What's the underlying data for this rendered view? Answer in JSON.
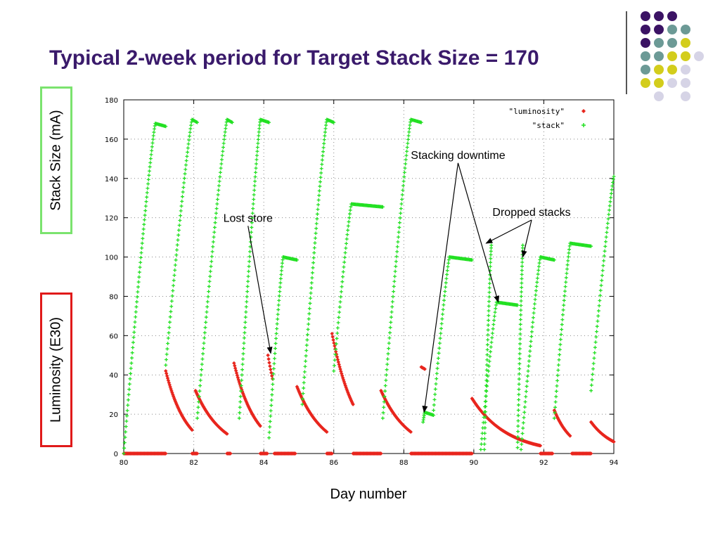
{
  "slide": {
    "title": "Typical 2-week period for Target Stack Size = 170",
    "ylabel_top": "Stack Size (mA)",
    "ylabel_bottom": "Luminosity (E30)",
    "xlabel": "Day number"
  },
  "decoration": {
    "dot_colors": [
      "#3b1364",
      "#6c9a96",
      "#d3cd1c",
      "#d6d4e6"
    ]
  },
  "chart_data": {
    "type": "scatter",
    "xlim": [
      80,
      94
    ],
    "ylim": [
      0,
      180
    ],
    "x_ticks": [
      80,
      82,
      84,
      86,
      88,
      90,
      92,
      94
    ],
    "y_ticks": [
      0,
      20,
      40,
      60,
      80,
      100,
      120,
      140,
      160,
      180
    ],
    "grid": true,
    "legend_position": "top-right",
    "legend": [
      "\"luminosity\"",
      "\"stack\""
    ],
    "colors": {
      "luminosity": "#e8261e",
      "stack": "#22e022"
    },
    "stack_segments": [
      {
        "x0": 80.0,
        "y0": 0,
        "x1": 80.9,
        "y1": 168,
        "plateau_end": 81.2
      },
      {
        "x0": 81.2,
        "y0": 45,
        "x1": 81.95,
        "y1": 170,
        "plateau_end": 82.1
      },
      {
        "x0": 82.1,
        "y0": 18,
        "x1": 82.95,
        "y1": 170,
        "plateau_end": 83.1
      },
      {
        "x0": 83.3,
        "y0": 18,
        "x1": 83.9,
        "y1": 170,
        "plateau_end": 84.15
      },
      {
        "x0": 84.15,
        "y0": 8,
        "x1": 84.55,
        "y1": 100,
        "plateau_end": 84.95
      },
      {
        "x0": 85.1,
        "y0": 25,
        "x1": 85.8,
        "y1": 170,
        "plateau_end": 86.0
      },
      {
        "x0": 86.0,
        "y0": 42,
        "x1": 86.5,
        "y1": 127,
        "plateau_end": 87.4
      },
      {
        "x0": 87.4,
        "y0": 18,
        "x1": 88.2,
        "y1": 170,
        "plateau_end": 88.5
      },
      {
        "x0": 88.55,
        "y0": 16,
        "x1": 88.6,
        "y1": 21,
        "plateau_end": 88.85
      },
      {
        "x0": 88.85,
        "y0": 22,
        "x1": 89.3,
        "y1": 100,
        "plateau_end": 89.95
      },
      {
        "x0": 90.3,
        "y0": 2,
        "x1": 90.5,
        "y1": 106,
        "plateau_end": 90.5
      },
      {
        "x0": 90.2,
        "y0": 2,
        "x1": 90.65,
        "y1": 77,
        "plateau_end": 91.25
      },
      {
        "x0": 91.25,
        "y0": 3,
        "x1": 91.4,
        "y1": 106,
        "plateau_end": 91.4
      },
      {
        "x0": 91.35,
        "y0": 2,
        "x1": 91.9,
        "y1": 100,
        "plateau_end": 92.3
      },
      {
        "x0": 92.3,
        "y0": 18,
        "x1": 92.75,
        "y1": 107,
        "plateau_end": 93.35
      },
      {
        "x0": 93.35,
        "y0": 32,
        "x1": 94.0,
        "y1": 141,
        "plateau_end": 94.0
      }
    ],
    "luminosity_decays": [
      {
        "x0": 81.2,
        "y0": 42,
        "x1": 81.95,
        "y1": 12
      },
      {
        "x0": 82.05,
        "y0": 32,
        "x1": 82.95,
        "y1": 10
      },
      {
        "x0": 83.15,
        "y0": 46,
        "x1": 83.9,
        "y1": 14
      },
      {
        "x0": 84.12,
        "y0": 50,
        "x1": 84.25,
        "y1": 38
      },
      {
        "x0": 84.95,
        "y0": 34,
        "x1": 85.8,
        "y1": 11
      },
      {
        "x0": 85.95,
        "y0": 61,
        "x1": 86.55,
        "y1": 25
      },
      {
        "x0": 87.35,
        "y0": 32,
        "x1": 88.2,
        "y1": 11
      },
      {
        "x0": 88.5,
        "y0": 44,
        "x1": 88.6,
        "y1": 43
      },
      {
        "x0": 89.95,
        "y0": 28,
        "x1": 91.9,
        "y1": 4
      },
      {
        "x0": 92.3,
        "y0": 22,
        "x1": 92.75,
        "y1": 9
      },
      {
        "x0": 93.35,
        "y0": 16,
        "x1": 94.0,
        "y1": 6
      }
    ],
    "luminosity_zero_ranges": [
      [
        80.0,
        81.2
      ],
      [
        81.95,
        82.1
      ],
      [
        82.95,
        83.05
      ],
      [
        83.9,
        84.1
      ],
      [
        84.3,
        84.9
      ],
      [
        85.8,
        85.95
      ],
      [
        86.55,
        87.35
      ],
      [
        88.2,
        89.95
      ],
      [
        91.9,
        92.25
      ],
      [
        92.8,
        93.35
      ]
    ],
    "annotations": [
      {
        "text": "Stacking downtime",
        "x": 89.55,
        "y": 150,
        "arrows_to": [
          [
            88.58,
            21
          ],
          [
            90.7,
            77
          ]
        ]
      },
      {
        "text": "Dropped stacks",
        "x": 91.65,
        "y": 121,
        "arrows_to": [
          [
            90.35,
            107
          ],
          [
            91.4,
            100
          ]
        ]
      },
      {
        "text": "Lost store",
        "x": 83.55,
        "y": 118,
        "arrows_to": [
          [
            84.2,
            51
          ]
        ]
      }
    ]
  }
}
